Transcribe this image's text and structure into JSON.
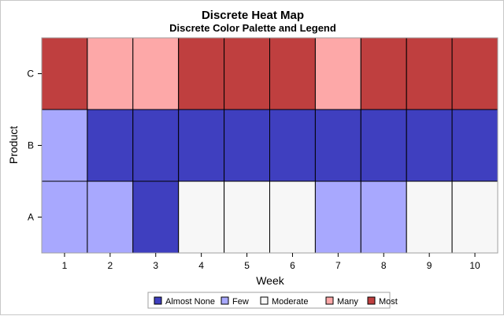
{
  "chart_data": {
    "type": "heatmap",
    "title": "Discrete Heat Map",
    "subtitle": "Discrete Color Palette and Legend",
    "xlabel": "Week",
    "ylabel": "Product",
    "x": [
      1,
      2,
      3,
      4,
      5,
      6,
      7,
      8,
      9,
      10
    ],
    "y": [
      "A",
      "B",
      "C"
    ],
    "levels": [
      "Almost None",
      "Few",
      "Moderate",
      "Many",
      "Most"
    ],
    "colors": {
      "Almost None": "#3f3fbf",
      "Few": "#a8a8fe",
      "Moderate": "#f7f7f7",
      "Many": "#fda8a8",
      "Most": "#bf3f3f"
    },
    "cells": {
      "A": [
        "Few",
        "Few",
        "Almost None",
        "Moderate",
        "Moderate",
        "Moderate",
        "Few",
        "Few",
        "Moderate",
        "Moderate"
      ],
      "B": [
        "Few",
        "Almost None",
        "Almost None",
        "Almost None",
        "Almost None",
        "Almost None",
        "Almost None",
        "Almost None",
        "Almost None",
        "Almost None"
      ],
      "C": [
        "Most",
        "Many",
        "Many",
        "Most",
        "Most",
        "Most",
        "Many",
        "Most",
        "Most",
        "Most"
      ]
    },
    "legend_position": "bottom"
  }
}
